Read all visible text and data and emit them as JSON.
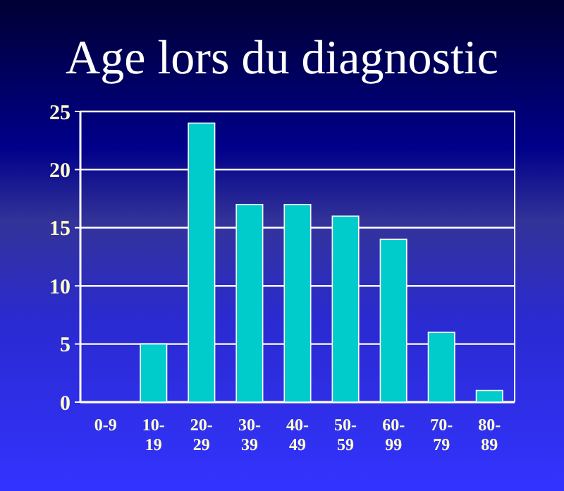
{
  "chart_data": {
    "type": "bar",
    "title": "Age lors du diagnostic",
    "categories": [
      "0-9",
      "10-19",
      "20-29",
      "30-39",
      "40-49",
      "50-59",
      "60-99",
      "70-79",
      "80-89"
    ],
    "values": [
      0,
      5,
      24,
      17,
      17,
      16,
      14,
      6,
      1
    ],
    "color": "#00cccc",
    "ylim": [
      0,
      25
    ],
    "yticks": [
      0,
      5,
      10,
      15,
      20,
      25
    ],
    "grid": "y"
  }
}
